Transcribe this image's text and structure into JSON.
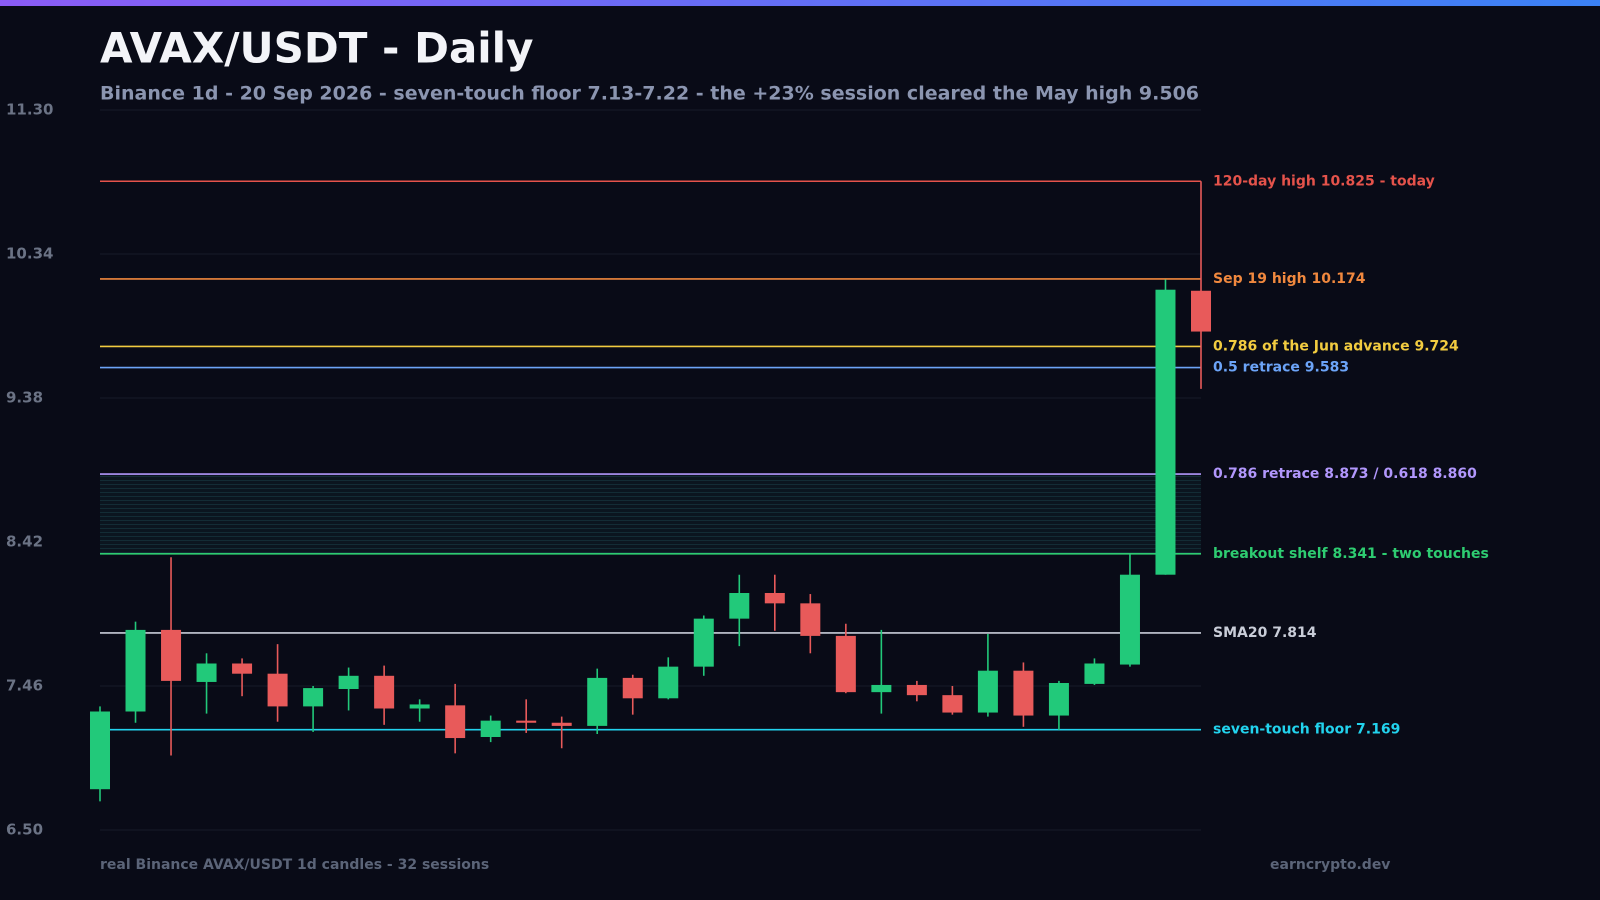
{
  "chart_data": {
    "type": "candlestick",
    "title": "AVAX/USDT - Daily",
    "subtitle": "Binance 1d - 20 Sep 2026 - seven-touch floor 7.13-7.22 - the +23% session cleared the May high 9.506",
    "source": "real Binance AVAX/USDT 1d candles - 32 sessions",
    "credit": "earncrypto.dev",
    "ylim": [
      6.5,
      11.3
    ],
    "yticks": [
      {
        "value": 11.3,
        "label": "11.30"
      },
      10.34,
      9.38,
      8.42,
      7.46,
      {
        "value": 6.5,
        "label": "6.50"
      }
    ],
    "grid": true,
    "up_color": "#22c97a",
    "down_color": "#e85a5a",
    "open": [
      6.772,
      7.29,
      7.834,
      7.487,
      7.61,
      7.542,
      7.324,
      7.44,
      7.528,
      7.31,
      7.331,
      7.12,
      7.229,
      7.215,
      7.194,
      7.514,
      7.378,
      7.589,
      7.909,
      8.08,
      8.011,
      7.794,
      7.419,
      7.467,
      7.399,
      7.283,
      7.562,
      7.263,
      7.474,
      7.603,
      8.202,
      10.095
    ],
    "high": [
      7.324,
      7.889,
      8.318,
      7.678,
      7.644,
      7.739,
      7.46,
      7.583,
      7.596,
      7.371,
      7.474,
      7.263,
      7.371,
      7.256,
      7.576,
      7.535,
      7.651,
      7.93,
      8.202,
      8.202,
      8.073,
      7.875,
      7.834,
      7.494,
      7.46,
      7.807,
      7.617,
      7.494,
      7.644,
      8.338,
      10.17,
      10.825
    ],
    "low": [
      6.691,
      7.215,
      6.997,
      7.276,
      7.392,
      7.222,
      7.154,
      7.297,
      7.201,
      7.222,
      7.011,
      7.086,
      7.147,
      7.045,
      7.14,
      7.269,
      7.371,
      7.528,
      7.726,
      7.828,
      7.678,
      7.412,
      7.276,
      7.358,
      7.269,
      7.256,
      7.188,
      7.167,
      7.467,
      7.589,
      8.202,
      9.441
    ],
    "close": [
      7.29,
      7.834,
      7.494,
      7.61,
      7.542,
      7.324,
      7.446,
      7.528,
      7.31,
      7.337,
      7.113,
      7.229,
      7.215,
      7.194,
      7.514,
      7.378,
      7.589,
      7.909,
      8.08,
      8.011,
      7.794,
      7.419,
      7.467,
      7.399,
      7.283,
      7.562,
      7.263,
      7.48,
      7.61,
      8.202,
      10.102,
      9.823
    ],
    "zone": [
      8.341,
      8.873
    ],
    "levels": [
      {
        "value": 10.825,
        "label": "120-day high 10.825 - today",
        "color": "#e5534b"
      },
      {
        "value": 10.174,
        "label": "Sep 19 high 10.174",
        "color": "#f0883e"
      },
      {
        "value": 9.724,
        "label": "0.786 of the Jun advance 9.724",
        "color": "#f2cc40"
      },
      {
        "value": 9.583,
        "label": "0.5 retrace 9.583",
        "color": "#6ca4f8"
      },
      {
        "value": 8.873,
        "label": "0.786 retrace 8.873 / 0.618 8.860",
        "color": "#b197fc"
      },
      {
        "value": 8.341,
        "label": "breakout shelf 8.341 - two touches",
        "color": "#2ecc71"
      },
      {
        "value": 7.814,
        "label": "SMA20 7.814",
        "color": "#c9cdd8"
      },
      {
        "value": 7.169,
        "label": "seven-touch floor 7.169",
        "color": "#22d3ee"
      }
    ]
  }
}
